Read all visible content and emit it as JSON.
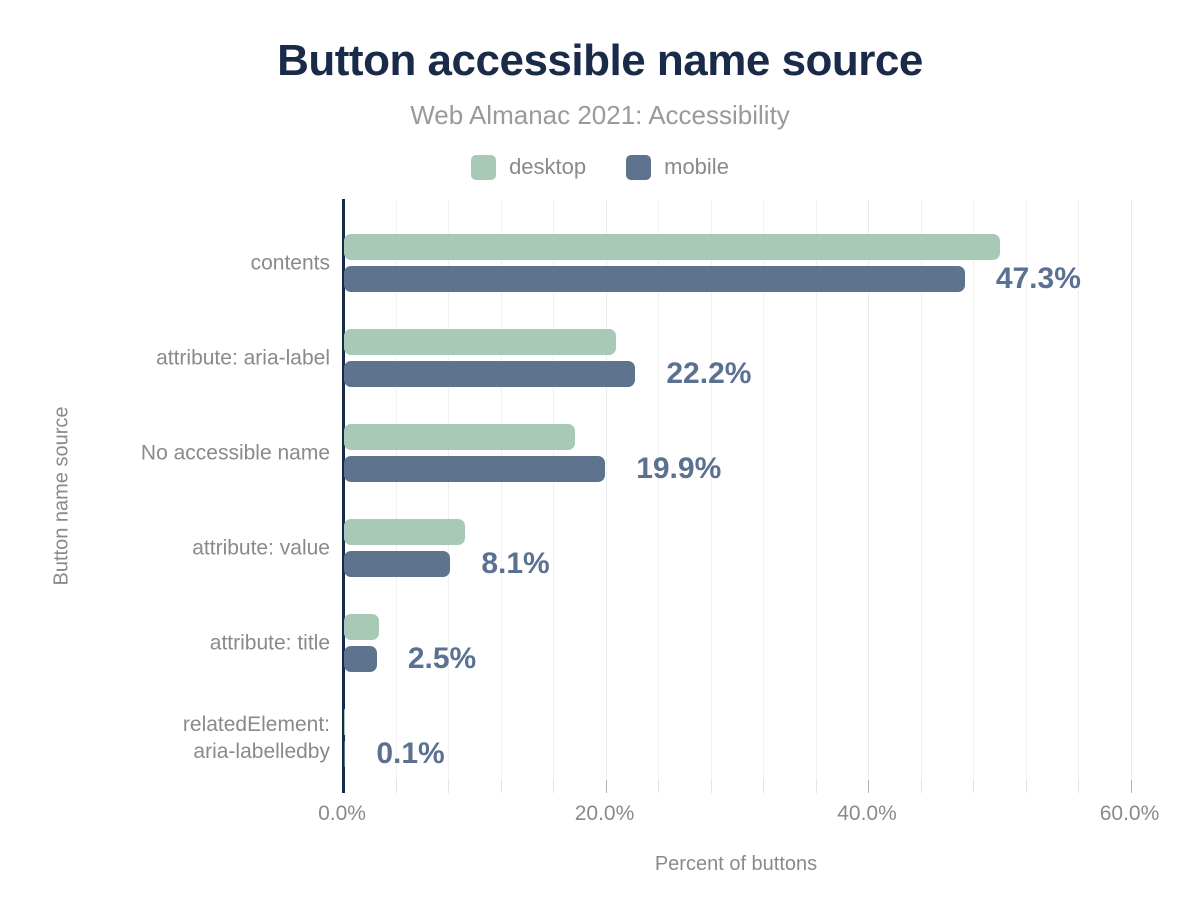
{
  "chart": {
    "title": "Button accessible name source",
    "subtitle": "Web Almanac 2021: Accessibility",
    "xlabel": "Percent of buttons",
    "ylabel": "Button name source"
  },
  "legend": {
    "items": [
      {
        "label": "desktop",
        "color": "#a8c9b6"
      },
      {
        "label": "mobile",
        "color": "#5e738e"
      }
    ]
  },
  "colors": {
    "desktop_bar": "#a8c9b6",
    "mobile_bar": "#5e738e",
    "title_text": "#1a2b49",
    "value_label_text": "#5b7191",
    "axis_line": "#16294a",
    "gray_text": "#8a8a8a",
    "gridline": "#f1f1f1"
  },
  "chart_data": {
    "type": "bar",
    "orientation": "horizontal",
    "title": "Button accessible name source",
    "subtitle": "Web Almanac 2021: Accessibility",
    "xlabel": "Percent of buttons",
    "ylabel": "Button name source",
    "categories": [
      "contents",
      "attribute: aria-label",
      "No accessible name",
      "attribute: value",
      "attribute: title",
      "relatedElement:\naria-labelledby"
    ],
    "series": [
      {
        "name": "desktop",
        "color": "#a8c9b6",
        "values": [
          50.0,
          20.7,
          17.6,
          9.2,
          2.7,
          0.1
        ]
      },
      {
        "name": "mobile",
        "color": "#5e738e",
        "values": [
          47.3,
          22.2,
          19.9,
          8.1,
          2.5,
          0.1
        ]
      }
    ],
    "value_labels": [
      "47.3%",
      "22.2%",
      "19.9%",
      "8.1%",
      "2.5%",
      "0.1%"
    ],
    "value_labels_series": "mobile",
    "xlim": [
      0,
      60
    ],
    "xticks": {
      "values": [
        0,
        20,
        40,
        60
      ],
      "labels": [
        "0.0%",
        "20.0%",
        "40.0%",
        "60.0%"
      ]
    },
    "minor_grid_step_pct": 4,
    "grid": true,
    "legend_position": "top"
  }
}
